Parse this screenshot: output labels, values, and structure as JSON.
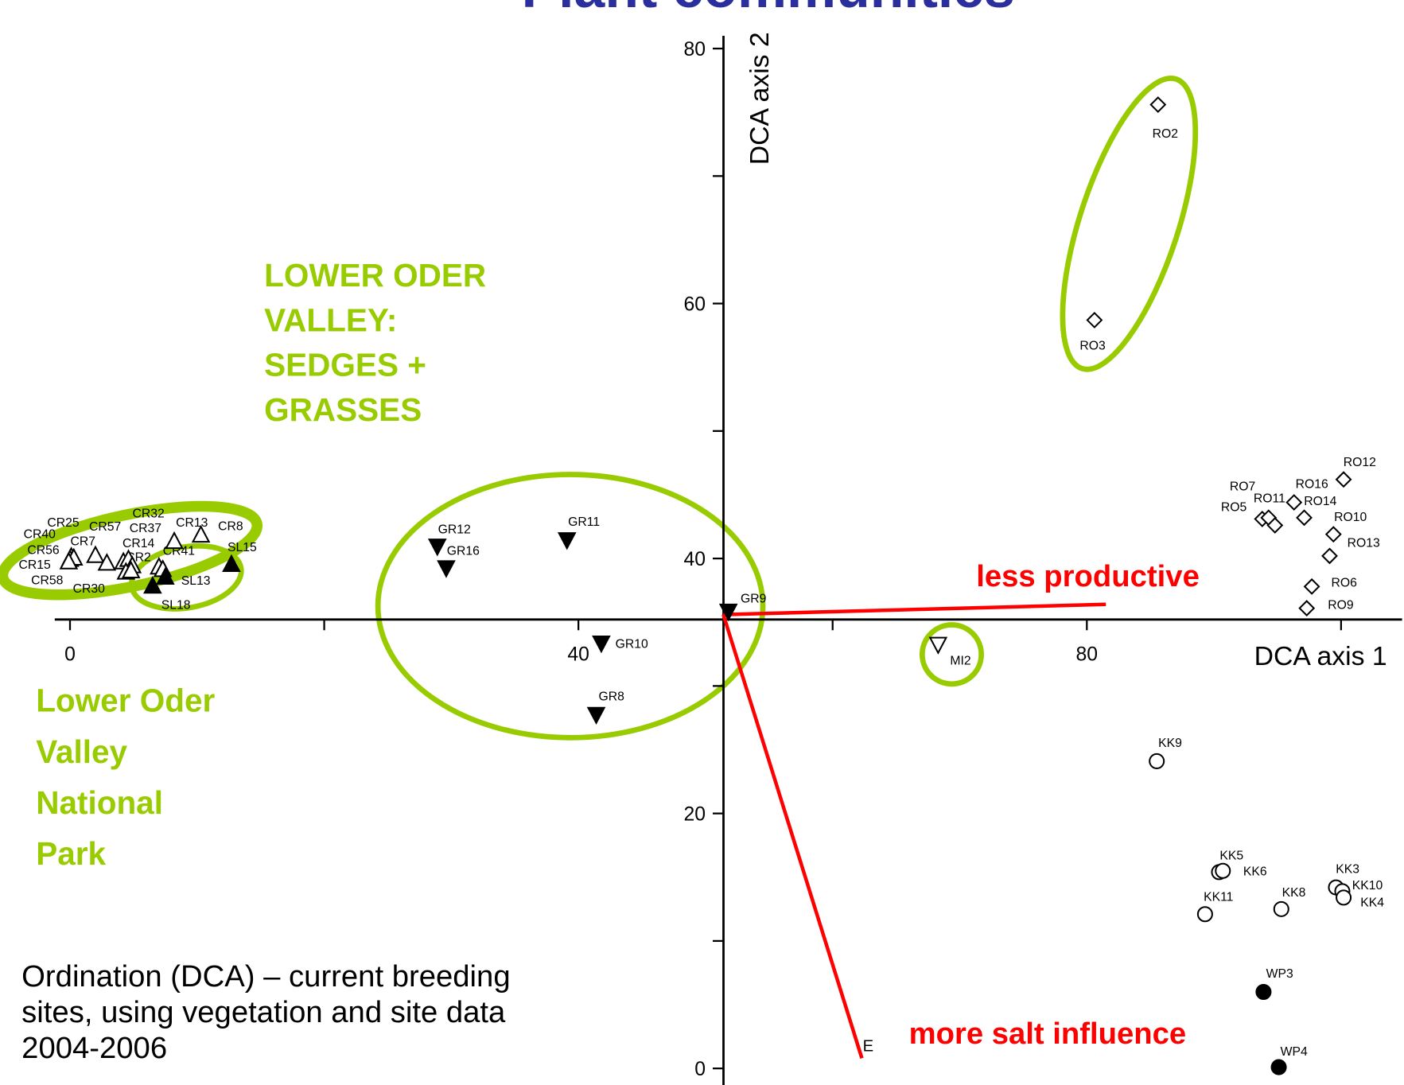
{
  "chart_data": {
    "type": "scatter",
    "title": "Plant communities",
    "xlabel": "DCA axis 1",
    "ylabel": "DCA axis 2",
    "xlim": [
      -1.2,
      104.8
    ],
    "ylim": [
      -1.3,
      81
    ],
    "xticks": [
      0,
      40,
      80
    ],
    "xminorticks": [
      20,
      60,
      100
    ],
    "yticks": [
      0,
      20,
      40,
      60,
      80
    ],
    "yminorticks": [
      10,
      30,
      50,
      70
    ],
    "series": [
      {
        "marker": "triangle-up",
        "filled": false,
        "color": "#000000",
        "labels": [
          "CR25",
          "CR40",
          "CR56",
          "CR7",
          "CR57",
          "CR32",
          "CR37",
          "CR13",
          "CR8",
          "CR14",
          "CR15",
          "CR58",
          "CR30",
          "CR2",
          "CR41"
        ],
        "x": [
          0.1,
          0,
          0.3,
          2.0,
          2.9,
          4.2,
          4.6,
          10.3,
          8.2,
          4.9,
          -0.1,
          4.4,
          4.8,
          7.0,
          7.3
        ],
        "y": [
          40.1,
          39.9,
          40.0,
          40.2,
          39.6,
          39.7,
          39.9,
          41.8,
          41.3,
          39.4,
          39.7,
          38.9,
          39.0,
          39.3,
          39.1
        ]
      },
      {
        "marker": "triangle-up",
        "filled": true,
        "color": "#000000",
        "labels": [
          "SL15",
          "SL13",
          "SL18"
        ],
        "x": [
          12.7,
          7.5,
          6.5
        ],
        "y": [
          39.5,
          38.5,
          37.8
        ]
      },
      {
        "marker": "triangle-down",
        "filled": true,
        "color": "#000000",
        "labels": [
          "GR12",
          "GR16",
          "GR11",
          "GR9",
          "GR10",
          "GR8"
        ],
        "x": [
          28.9,
          29.6,
          39.1,
          51.8,
          41.8,
          41.4
        ],
        "y": [
          41.0,
          39.3,
          41.5,
          35.9,
          33.4,
          27.8
        ]
      },
      {
        "marker": "triangle-down",
        "filled": false,
        "color": "#000000",
        "labels": [
          "MI2"
        ],
        "x": [
          68.3
        ],
        "y": [
          33.3
        ]
      },
      {
        "marker": "diamond",
        "filled": false,
        "color": "#000000",
        "labels": [
          "RO2",
          "RO3",
          "RO12",
          "RO16",
          "RO7",
          "RO11",
          "RO14",
          "RO5",
          "RO10",
          "RO13",
          "RO6",
          "RO9"
        ],
        "x": [
          85.6,
          80.6,
          100.2,
          96.3,
          93.8,
          94.3,
          97.1,
          94.8,
          99.4,
          99.1,
          97.7,
          97.3
        ],
        "y": [
          75.6,
          58.7,
          46.2,
          44.4,
          43.1,
          43.2,
          43.2,
          42.6,
          41.9,
          40.2,
          37.8,
          36.1
        ]
      },
      {
        "marker": "circle",
        "filled": false,
        "color": "#000000",
        "labels": [
          "KK9",
          "KK5",
          "KK6",
          "KK3",
          "KK10",
          "KK4",
          "KK8",
          "KK11"
        ],
        "x": [
          85.5,
          90.4,
          90.7,
          99.6,
          100.1,
          100.2,
          95.3,
          89.3
        ],
        "y": [
          24.1,
          15.4,
          15.5,
          14.2,
          13.9,
          13.4,
          12.5,
          12.1
        ]
      },
      {
        "marker": "circle",
        "filled": true,
        "color": "#000000",
        "labels": [
          "WP3",
          "WP4"
        ],
        "x": [
          93.9,
          95.1
        ],
        "y": [
          6.0,
          0.1
        ]
      }
    ],
    "vectors": [
      {
        "label": "less productive",
        "color": "#ff0000",
        "x": [
          51.4,
          81.5
        ],
        "y": [
          35.6,
          36.4
        ]
      },
      {
        "label": "more salt influence",
        "tip_label": "E",
        "color": "#ff0000",
        "x": [
          51.4,
          62.3
        ],
        "y": [
          35.6,
          0.8
        ]
      }
    ],
    "annotations": [
      {
        "lines": [
          "LOWER ODER",
          "VALLEY:",
          "SEDGES +",
          "GRASSES"
        ]
      },
      {
        "lines": [
          "Lower Oder",
          "Valley",
          "National",
          "Park"
        ]
      },
      {
        "lines": [
          "Ordination (DCA) – current breeding",
          "sites, using vegetation and site data",
          "2004-2006"
        ]
      }
    ]
  }
}
